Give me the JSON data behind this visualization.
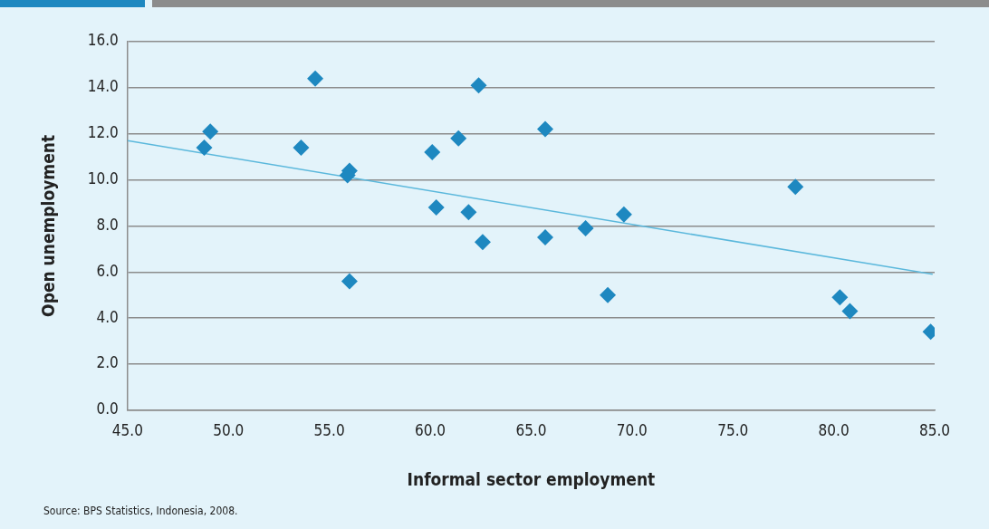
{
  "chart_data": {
    "type": "scatter",
    "xlabel": "Informal sector employment",
    "ylabel": "Open unemployment",
    "annotations": [
      "Source: BPS Statistics, Indonesia, 2008."
    ],
    "grid": "y",
    "legend": false,
    "marker": "diamond",
    "xlim": [
      45,
      85
    ],
    "xticks": [
      {
        "value": 45,
        "label": "45.0"
      },
      {
        "value": 50,
        "label": "50.0"
      },
      {
        "value": 55,
        "label": "55.0"
      },
      {
        "value": 60,
        "label": "60.0"
      },
      {
        "value": 65,
        "label": "65.0"
      },
      {
        "value": 70,
        "label": "70.0"
      },
      {
        "value": 75,
        "label": "75.0"
      },
      {
        "value": 80,
        "label": "80.0"
      },
      {
        "value": 85,
        "label": "85.0"
      }
    ],
    "ylim": [
      0,
      16
    ],
    "yticks": [
      {
        "value": 0,
        "label": "0.0"
      },
      {
        "value": 2,
        "label": "2.0"
      },
      {
        "value": 4,
        "label": "4.0"
      },
      {
        "value": 6,
        "label": "6.0"
      },
      {
        "value": 8,
        "label": "8.0"
      },
      {
        "value": 10,
        "label": "10.0"
      },
      {
        "value": 12,
        "label": "12.0"
      },
      {
        "value": 14,
        "label": "14.0"
      },
      {
        "value": 16,
        "label": "16.0"
      }
    ],
    "series": [
      {
        "color": "#1e88c0",
        "x": [
          48.8,
          49.1,
          53.6,
          54.3,
          56.0,
          55.9,
          56.0,
          60.1,
          60.3,
          61.4,
          61.9,
          62.4,
          62.6,
          65.7,
          65.7,
          67.7,
          68.8,
          69.6,
          78.1,
          80.3,
          80.8,
          84.8
        ],
        "values": [
          11.4,
          12.1,
          11.4,
          14.4,
          10.4,
          10.2,
          5.6,
          11.2,
          8.8,
          11.8,
          8.6,
          14.1,
          7.3,
          12.2,
          7.5,
          7.9,
          5.0,
          8.5,
          9.7,
          4.9,
          4.3,
          3.4
        ]
      },
      {
        "type": "line",
        "color": "#5bb8dc",
        "marker": "none",
        "x": [
          45,
          84.9
        ],
        "values": [
          11.7,
          5.9
        ]
      }
    ]
  }
}
